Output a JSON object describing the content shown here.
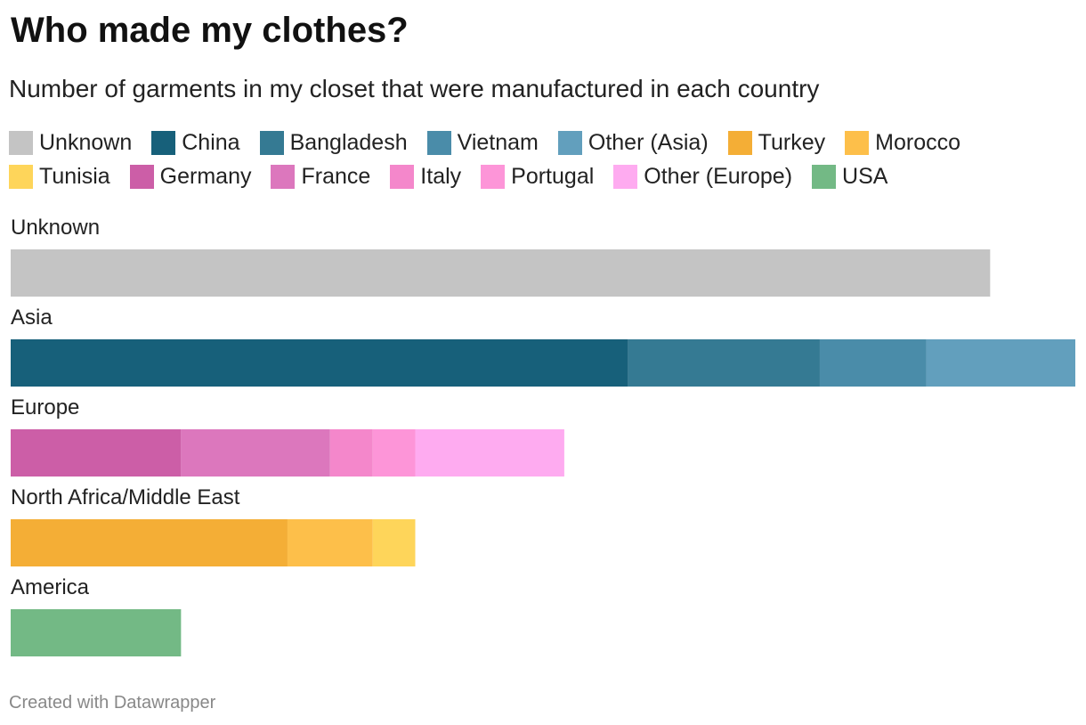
{
  "title": "Who made my clothes?",
  "subtitle": "Number of garments in my closet that were manufactured in each country",
  "legend": [
    [
      {
        "label": "Unknown",
        "color": "#c4c4c4"
      },
      {
        "label": "China",
        "color": "#17607a"
      },
      {
        "label": "Bangladesh",
        "color": "#357a93"
      },
      {
        "label": "Vietnam",
        "color": "#4a8ca9"
      },
      {
        "label": "Other (Asia)",
        "color": "#629fbd"
      },
      {
        "label": "Turkey",
        "color": "#f4ae36"
      },
      {
        "label": "Morocco",
        "color": "#fdbf4a"
      }
    ],
    [
      {
        "label": "Tunisia",
        "color": "#fed55a"
      },
      {
        "label": "Germany",
        "color": "#cc5ea7"
      },
      {
        "label": "France",
        "color": "#dc77bd"
      },
      {
        "label": "Italy",
        "color": "#f487cb"
      },
      {
        "label": "Portugal",
        "color": "#fd95d8"
      },
      {
        "label": "Other (Europe)",
        "color": "#feabf0"
      },
      {
        "label": "USA",
        "color": "#73b985"
      }
    ]
  ],
  "chart_data": {
    "type": "bar",
    "stacked": true,
    "orientation": "horizontal",
    "title": "Who made my clothes?",
    "subtitle": "Number of garments in my closet that were manufactured in each country",
    "categories": [
      "Unknown",
      "Asia",
      "Europe",
      "North Africa/Middle East",
      "America"
    ],
    "xlim": [
      0,
      100
    ],
    "series": [
      {
        "name": "Unknown",
        "color": "#c4c4c4",
        "values": [
          92,
          0,
          0,
          0,
          0
        ]
      },
      {
        "name": "China",
        "color": "#17607a",
        "values": [
          0,
          58,
          0,
          0,
          0
        ]
      },
      {
        "name": "Bangladesh",
        "color": "#357a93",
        "values": [
          0,
          18,
          0,
          0,
          0
        ]
      },
      {
        "name": "Vietnam",
        "color": "#4a8ca9",
        "values": [
          0,
          10,
          0,
          0,
          0
        ]
      },
      {
        "name": "Other (Asia)",
        "color": "#629fbd",
        "values": [
          0,
          14,
          0,
          0,
          0
        ]
      },
      {
        "name": "Germany",
        "color": "#cc5ea7",
        "values": [
          0,
          0,
          16,
          0,
          0
        ]
      },
      {
        "name": "France",
        "color": "#dc77bd",
        "values": [
          0,
          0,
          14,
          0,
          0
        ]
      },
      {
        "name": "Italy",
        "color": "#f487cb",
        "values": [
          0,
          0,
          4,
          0,
          0
        ]
      },
      {
        "name": "Portugal",
        "color": "#fd95d8",
        "values": [
          0,
          0,
          4,
          0,
          0
        ]
      },
      {
        "name": "Other (Europe)",
        "color": "#feabf0",
        "values": [
          0,
          0,
          14,
          0,
          0
        ]
      },
      {
        "name": "Turkey",
        "color": "#f4ae36",
        "values": [
          0,
          0,
          0,
          26,
          0
        ]
      },
      {
        "name": "Morocco",
        "color": "#fdbf4a",
        "values": [
          0,
          0,
          0,
          8,
          0
        ]
      },
      {
        "name": "Tunisia",
        "color": "#fed55a",
        "values": [
          0,
          0,
          0,
          4,
          0
        ]
      },
      {
        "name": "USA",
        "color": "#73b985",
        "values": [
          0,
          0,
          0,
          0,
          16
        ]
      }
    ]
  },
  "footer": "Created with Datawrapper"
}
